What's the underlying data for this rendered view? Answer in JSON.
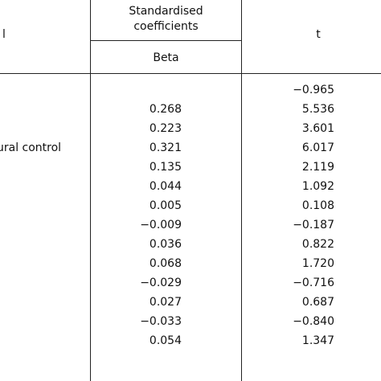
{
  "header": {
    "first_col_label": "l",
    "std_coeff_line1": "Standardised",
    "std_coeff_line2": "coefficients",
    "beta_label": "Beta",
    "t_label": "t"
  },
  "rows": [
    {
      "label": "",
      "beta": "",
      "t": "−0.965"
    },
    {
      "label": "",
      "beta": "0.268",
      "t": "5.536"
    },
    {
      "label": "",
      "beta": "0.223",
      "t": "3.601"
    },
    {
      "label": "ural control",
      "beta": "0.321",
      "t": "6.017"
    },
    {
      "label": "",
      "beta": "0.135",
      "t": "2.119"
    },
    {
      "label": "",
      "beta": "0.044",
      "t": "1.092"
    },
    {
      "label": "",
      "beta": "0.005",
      "t": "0.108"
    },
    {
      "label": "",
      "beta": "−0.009",
      "t": "−0.187"
    },
    {
      "label": "",
      "beta": "0.036",
      "t": "0.822"
    },
    {
      "label": "",
      "beta": "0.068",
      "t": "1.720"
    },
    {
      "label": "",
      "beta": "−0.029",
      "t": "−0.716"
    },
    {
      "label": "",
      "beta": "0.027",
      "t": "0.687"
    },
    {
      "label": "",
      "beta": "−0.033",
      "t": "−0.840"
    },
    {
      "label": "",
      "beta": "0.054",
      "t": "1.347"
    }
  ]
}
